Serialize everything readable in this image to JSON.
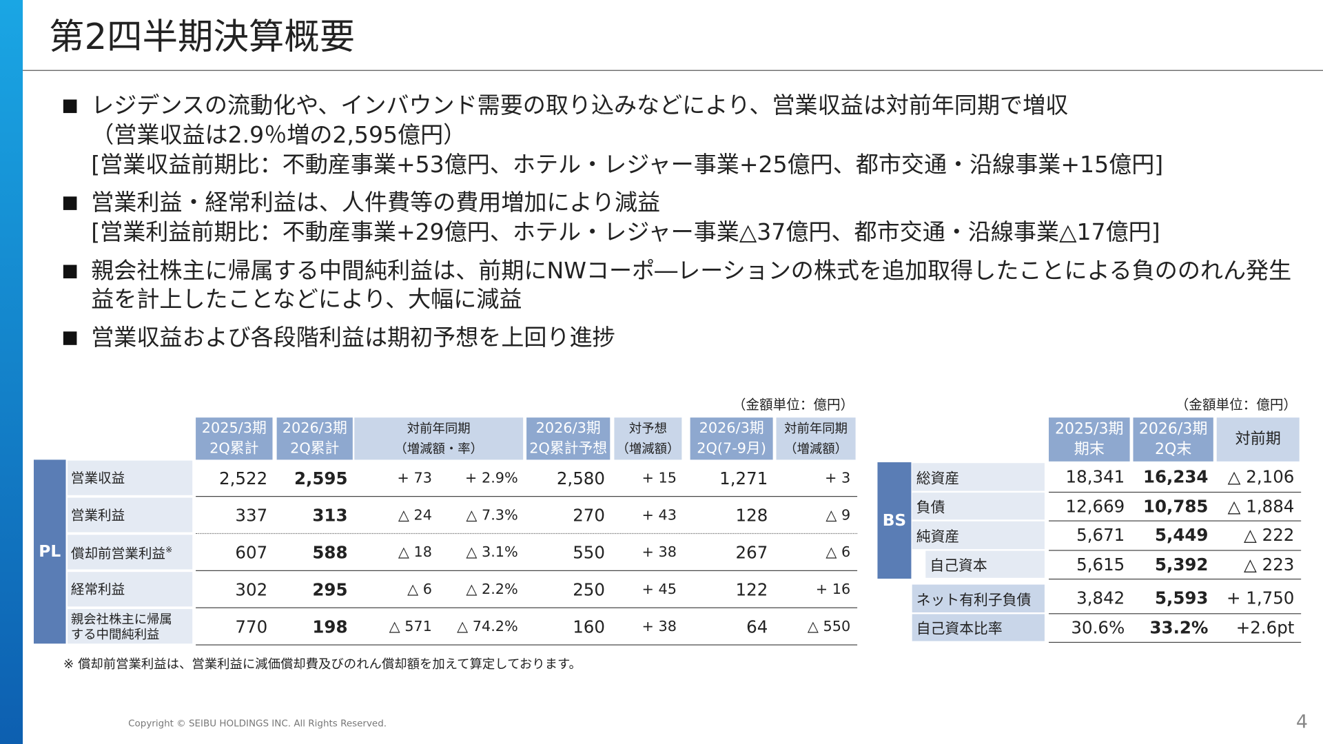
{
  "header": {
    "title": "第2四半期決算概要"
  },
  "bullets": [
    {
      "lines": [
        "レジデンスの流動化や、インバウンド需要の取り込みなどにより、営業収益は対前年同期で増収",
        "（営業収益は2.9％増の2,595億円）",
        "[営業収益前期比：不動産事業+53億円、ホテル・レジャー事業+25億円、都市交通・沿線事業+15億円]"
      ]
    },
    {
      "lines": [
        "営業利益・経常利益は、人件費等の費用増加により減益",
        "[営業利益前期比：不動産事業+29億円、ホテル・レジャー事業△37億円、都市交通・沿線事業△17億円]"
      ]
    },
    {
      "lines": [
        "親会社株主に帰属する中間純利益は、前期にNWコーポ―レーションの株式を追加取得したことによる負ののれん発生",
        "益を計上したことなどにより、大幅に減益"
      ]
    },
    {
      "lines": [
        "営業収益および各段階利益は期初予想を上回り進捗"
      ]
    }
  ],
  "pl_table": {
    "unit": "（金額単位：億円）",
    "side_label": "PL",
    "headers": [
      [
        "2025/3期",
        "2Q累計"
      ],
      [
        "2026/3期",
        "2Q累計"
      ],
      [
        "対前年同期",
        "（増減額・率）"
      ],
      [
        "2026/3期",
        "2Q累計予想"
      ],
      [
        "対予想",
        "（増減額）"
      ],
      [
        "2026/3期",
        "2Q(7-9月)"
      ],
      [
        "対前年同期",
        "（増減額）"
      ]
    ],
    "rows": [
      {
        "label": [
          "営業収益"
        ],
        "values": [
          "2,522",
          "2,595",
          "+ 73",
          "+ 2.9%",
          "2,580",
          "+ 15",
          "1,271",
          "+ 3"
        ]
      },
      {
        "label": [
          "営業利益"
        ],
        "values": [
          "337",
          "313",
          "△ 24",
          "△ 7.3%",
          "270",
          "+ 43",
          "128",
          "△ 9"
        ]
      },
      {
        "label": [
          "償却前営業利益"
        ],
        "note": "※",
        "values": [
          "607",
          "588",
          "△ 18",
          "△ 3.1%",
          "550",
          "+ 38",
          "267",
          "△ 6"
        ]
      },
      {
        "label": [
          "経常利益"
        ],
        "values": [
          "302",
          "295",
          "△ 6",
          "△ 2.2%",
          "250",
          "+ 45",
          "122",
          "+ 16"
        ]
      },
      {
        "label": [
          "親会社株主に帰属",
          "する中間純利益"
        ],
        "values": [
          "770",
          "198",
          "△ 571",
          "△ 74.2%",
          "160",
          "+ 38",
          "64",
          "△ 550"
        ]
      }
    ]
  },
  "bs_table": {
    "unit": "（金額単位：億円）",
    "headers": [
      [
        "2025/3期",
        "期末"
      ],
      [
        "2026/3期",
        "2Q末"
      ],
      [
        "対前期"
      ]
    ],
    "groups": [
      {
        "side_label": "BS",
        "rows": [
          {
            "label": "総資産",
            "values": [
              "18,341",
              "16,234",
              "△ 2,106"
            ]
          },
          {
            "label": "負債",
            "values": [
              "12,669",
              "10,785",
              "△ 1,884"
            ]
          },
          {
            "label": "純資産",
            "values": [
              "5,671",
              "5,449",
              "△ 222"
            ]
          },
          {
            "label": "自己資本",
            "values": [
              "5,615",
              "5,392",
              "△ 223"
            ]
          }
        ]
      },
      {
        "rows": [
          {
            "label": "ネット有利子負債",
            "values": [
              "3,842",
              "5,593",
              "+ 1,750"
            ]
          },
          {
            "label": "自己資本比率",
            "values": [
              "30.6%",
              "33.2%",
              "+2.6pt"
            ]
          }
        ]
      }
    ]
  },
  "footnote": "※ 償却前営業利益は、営業利益に減価償却費及びのれん償却額を加えて算定しております。",
  "footer": {
    "copyright": "Copyright © SEIBU HOLDINGS INC. All Rights Reserved.",
    "page": "4"
  }
}
